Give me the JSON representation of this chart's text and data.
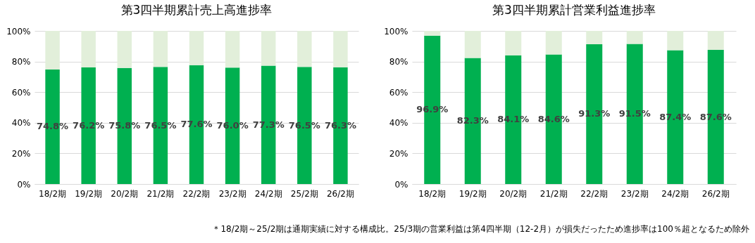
{
  "chart_data": [
    {
      "type": "bar",
      "title": "第3四半期累計売上高進捗率",
      "stacked": true,
      "categories": [
        "18/2期",
        "19/2期",
        "20/2期",
        "21/2期",
        "22/2期",
        "23/2期",
        "24/2期",
        "25/2期",
        "26/2期"
      ],
      "series": [
        {
          "color": "#00b050",
          "values": [
            74.8,
            76.2,
            75.8,
            76.5,
            77.6,
            76.0,
            77.3,
            76.5,
            76.3
          ],
          "value_labels": [
            "74.8%",
            "76.2%",
            "75.8%",
            "76.5%",
            "77.6%",
            "76.0%",
            "77.3%",
            "76.5%",
            "76.3%"
          ]
        },
        {
          "color": "#e2efda",
          "values": [
            25.2,
            23.8,
            24.2,
            23.5,
            22.4,
            24.0,
            22.7,
            23.5,
            23.7
          ]
        }
      ],
      "ylim": [
        0,
        100
      ],
      "yticks": [
        {
          "value": 0,
          "label": "0%"
        },
        {
          "value": 20,
          "label": "20%"
        },
        {
          "value": 40,
          "label": "40%"
        },
        {
          "value": 60,
          "label": "60%"
        },
        {
          "value": 80,
          "label": "80%"
        },
        {
          "value": 100,
          "label": "100%"
        }
      ],
      "grid": "y"
    },
    {
      "type": "bar",
      "title": "第3四半期累計営業利益進捗率",
      "stacked": true,
      "categories": [
        "18/2期",
        "19/2期",
        "20/2期",
        "21/2期",
        "22/2期",
        "23/2期",
        "24/2期",
        "26/2期"
      ],
      "series": [
        {
          "color": "#00b050",
          "values": [
            96.9,
            82.3,
            84.1,
            84.6,
            91.3,
            91.5,
            87.4,
            87.6
          ],
          "value_labels": [
            "96.9%",
            "82.3%",
            "84.1%",
            "84.6%",
            "91.3%",
            "91.5%",
            "87.4%",
            "87.6%"
          ]
        },
        {
          "color": "#e2efda",
          "values": [
            3.1,
            17.7,
            15.9,
            15.4,
            8.7,
            8.5,
            12.6,
            12.4
          ]
        }
      ],
      "ylim": [
        0,
        100
      ],
      "yticks": [
        {
          "value": 0,
          "label": "0%"
        },
        {
          "value": 20,
          "label": "20%"
        },
        {
          "value": 40,
          "label": "40%"
        },
        {
          "value": 60,
          "label": "60%"
        },
        {
          "value": 80,
          "label": "80%"
        },
        {
          "value": 100,
          "label": "100%"
        }
      ],
      "grid": "y",
      "annotations": [
        "＊18/2期～25/2期は通期実績に対する構成比。25/3期の営業利益は第4四半期（12-2月）が損失だったため進捗率は100％超となるため除外"
      ]
    }
  ]
}
